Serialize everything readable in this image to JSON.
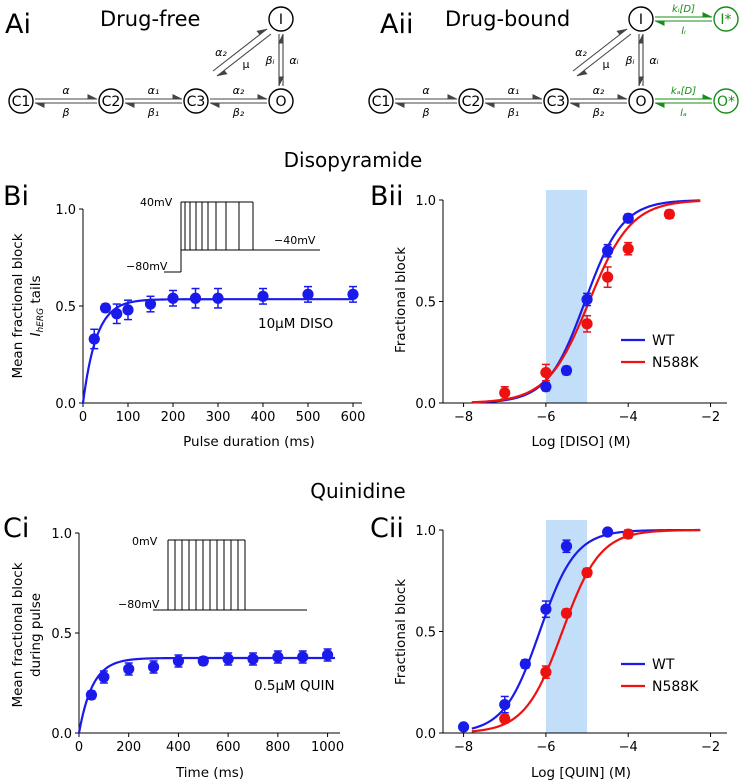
{
  "section_titles": {
    "disopyramide": "Disopyramide",
    "quinidine": "Quinidine"
  },
  "panel_labels": {
    "ai": "Ai",
    "aii": "Aii",
    "bi": "Bi",
    "bii": "Bii",
    "ci": "Ci",
    "cii": "Cii"
  },
  "schemes": {
    "drug_free_title": "Drug-free",
    "drug_bound_title": "Drug-bound",
    "states": {
      "c1": "C1",
      "c2": "C2",
      "c3": "C3",
      "o": "O",
      "i": "I",
      "i_star": "I*",
      "o_star": "O*"
    },
    "rates": {
      "c1_c2_fwd": "α",
      "c1_c2_rev": "β",
      "c2_c3_fwd": "α₁",
      "c2_c3_rev": "β₁",
      "c3_o_fwd": "α₂",
      "c3_o_rev": "β₂",
      "c3_i_fwd": "α₂",
      "c3_i_rev": "μ",
      "i_o_left": "βᵢ",
      "i_o_right": "αᵢ",
      "i_bind_fwd": "kᵢ[D]",
      "i_bind_rev": "lᵢ",
      "o_bind_fwd": "kₐ[D]",
      "o_bind_rev": "lₐ"
    }
  },
  "colors": {
    "wt": "#1a1aeb",
    "n588k": "#ee1111",
    "highlight": "#c2def8",
    "binding": "#1a8c1a"
  },
  "chart_data": [
    {
      "id": "Bi",
      "type": "scatter",
      "title": "",
      "xlabel": "Pulse duration (ms)",
      "ylabel_line1": "Mean fractional block",
      "ylabel_line2": "I_hERG tails",
      "ylabel_main": "I",
      "ylabel_sub": "hERG",
      "ylabel_tail": " tails",
      "xlim": [
        0,
        620
      ],
      "ylim": [
        0,
        1.0
      ],
      "xticks": [
        0,
        100,
        200,
        300,
        400,
        500,
        600
      ],
      "xticklabels": [
        "0",
        "100",
        "200",
        "300",
        "400",
        "500",
        "600"
      ],
      "yticks": [
        0,
        0.5,
        1.0
      ],
      "yticklabels": [
        "0.0",
        "0.5",
        "1.0"
      ],
      "annotation": "10μM DISO",
      "protocol": {
        "hold_label": "−80mV",
        "step_label": "40mV",
        "tail_label": "−40mV"
      },
      "series": [
        {
          "name": "WT",
          "x": [
            25,
            50,
            75,
            100,
            150,
            200,
            250,
            300,
            400,
            500,
            600
          ],
          "y": [
            0.33,
            0.49,
            0.46,
            0.48,
            0.51,
            0.54,
            0.54,
            0.54,
            0.55,
            0.56,
            0.56
          ],
          "err": [
            0.05,
            0.02,
            0.05,
            0.05,
            0.04,
            0.04,
            0.05,
            0.05,
            0.04,
            0.04,
            0.04
          ]
        }
      ],
      "fit": {
        "plateau": 0.535,
        "tau_ms": 30
      }
    },
    {
      "id": "Bii",
      "type": "scatter",
      "xlabel": "Log [DISO] (M)",
      "ylabel": "Fractional block",
      "xlim": [
        -8.5,
        -1.6
      ],
      "ylim": [
        0,
        1.0
      ],
      "xticks": [
        -8,
        -6,
        -4,
        -2
      ],
      "xticklabels": [
        "−8",
        "−6",
        "−4",
        "−2"
      ],
      "yticks": [
        0,
        0.5,
        1.0
      ],
      "yticklabels": [
        "0.0",
        "0.5",
        "1.0"
      ],
      "highlight_x": [
        -6,
        -5
      ],
      "legend": "bottom-right",
      "series": [
        {
          "name": "WT",
          "x": [
            -6,
            -5.5,
            -5,
            -4.5,
            -4
          ],
          "y": [
            0.08,
            0.16,
            0.51,
            0.75,
            0.91
          ],
          "err": [
            0.02,
            0.02,
            0.03,
            0.03,
            0.02
          ]
        },
        {
          "name": "N588K",
          "x": [
            -7,
            -6,
            -5,
            -4.5,
            -4,
            -3
          ],
          "y": [
            0.05,
            0.15,
            0.39,
            0.62,
            0.76,
            0.93
          ],
          "err": [
            0.03,
            0.04,
            0.04,
            0.05,
            0.03,
            0.02
          ]
        }
      ],
      "fits": [
        {
          "name": "WT",
          "log_ic50": -5.05,
          "hill": 0.95
        },
        {
          "name": "N588K",
          "log_ic50": -4.95,
          "hill": 0.85
        }
      ]
    },
    {
      "id": "Ci",
      "type": "scatter",
      "xlabel": "Time (ms)",
      "ylabel_line1": "Mean fractional block",
      "ylabel_line2": "during pulse",
      "xlim": [
        0,
        1050
      ],
      "ylim": [
        0,
        1.0
      ],
      "xticks": [
        0,
        200,
        400,
        600,
        800,
        1000
      ],
      "xticklabels": [
        "0",
        "200",
        "400",
        "600",
        "800",
        "1000"
      ],
      "yticks": [
        0,
        0.5,
        1.0
      ],
      "yticklabels": [
        "0.0",
        "0.5",
        "1.0"
      ],
      "annotation": "0.5μM QUIN",
      "protocol": {
        "hold_label": "−80mV",
        "step_label": "0mV"
      },
      "series": [
        {
          "name": "WT",
          "x": [
            50,
            100,
            200,
            300,
            400,
            500,
            600,
            700,
            800,
            900,
            1000
          ],
          "y": [
            0.19,
            0.28,
            0.32,
            0.33,
            0.36,
            0.36,
            0.37,
            0.37,
            0.38,
            0.38,
            0.39
          ],
          "err": [
            0.02,
            0.03,
            0.03,
            0.03,
            0.03,
            0.02,
            0.03,
            0.03,
            0.03,
            0.03,
            0.03
          ]
        }
      ],
      "fit": {
        "plateau": 0.375,
        "tau_ms": 55
      }
    },
    {
      "id": "Cii",
      "type": "scatter",
      "xlabel": "Log [QUIN] (M)",
      "ylabel": "Fractional block",
      "xlim": [
        -8.5,
        -1.6
      ],
      "ylim": [
        0,
        1.0
      ],
      "xticks": [
        -8,
        -6,
        -4,
        -2
      ],
      "xticklabels": [
        "−8",
        "−6",
        "−4",
        "−2"
      ],
      "yticks": [
        0,
        0.5,
        1.0
      ],
      "yticklabels": [
        "0.0",
        "0.5",
        "1.0"
      ],
      "highlight_x": [
        -6,
        -5
      ],
      "legend": "bottom-right",
      "series": [
        {
          "name": "WT",
          "x": [
            -8,
            -7,
            -6.5,
            -6,
            -5.5,
            -4.5
          ],
          "y": [
            0.03,
            0.14,
            0.34,
            0.61,
            0.92,
            0.99
          ],
          "err": [
            0.01,
            0.04,
            0.02,
            0.04,
            0.03,
            0.01
          ]
        },
        {
          "name": "N588K",
          "x": [
            -7,
            -6,
            -5.5,
            -5,
            -4
          ],
          "y": [
            0.07,
            0.3,
            0.59,
            0.79,
            0.98
          ],
          "err": [
            0.02,
            0.03,
            0.02,
            0.02,
            0.02
          ]
        }
      ],
      "fits": [
        {
          "name": "WT",
          "log_ic50": -6.15,
          "hill": 1.0
        },
        {
          "name": "N588K",
          "log_ic50": -5.6,
          "hill": 0.95
        }
      ]
    }
  ]
}
